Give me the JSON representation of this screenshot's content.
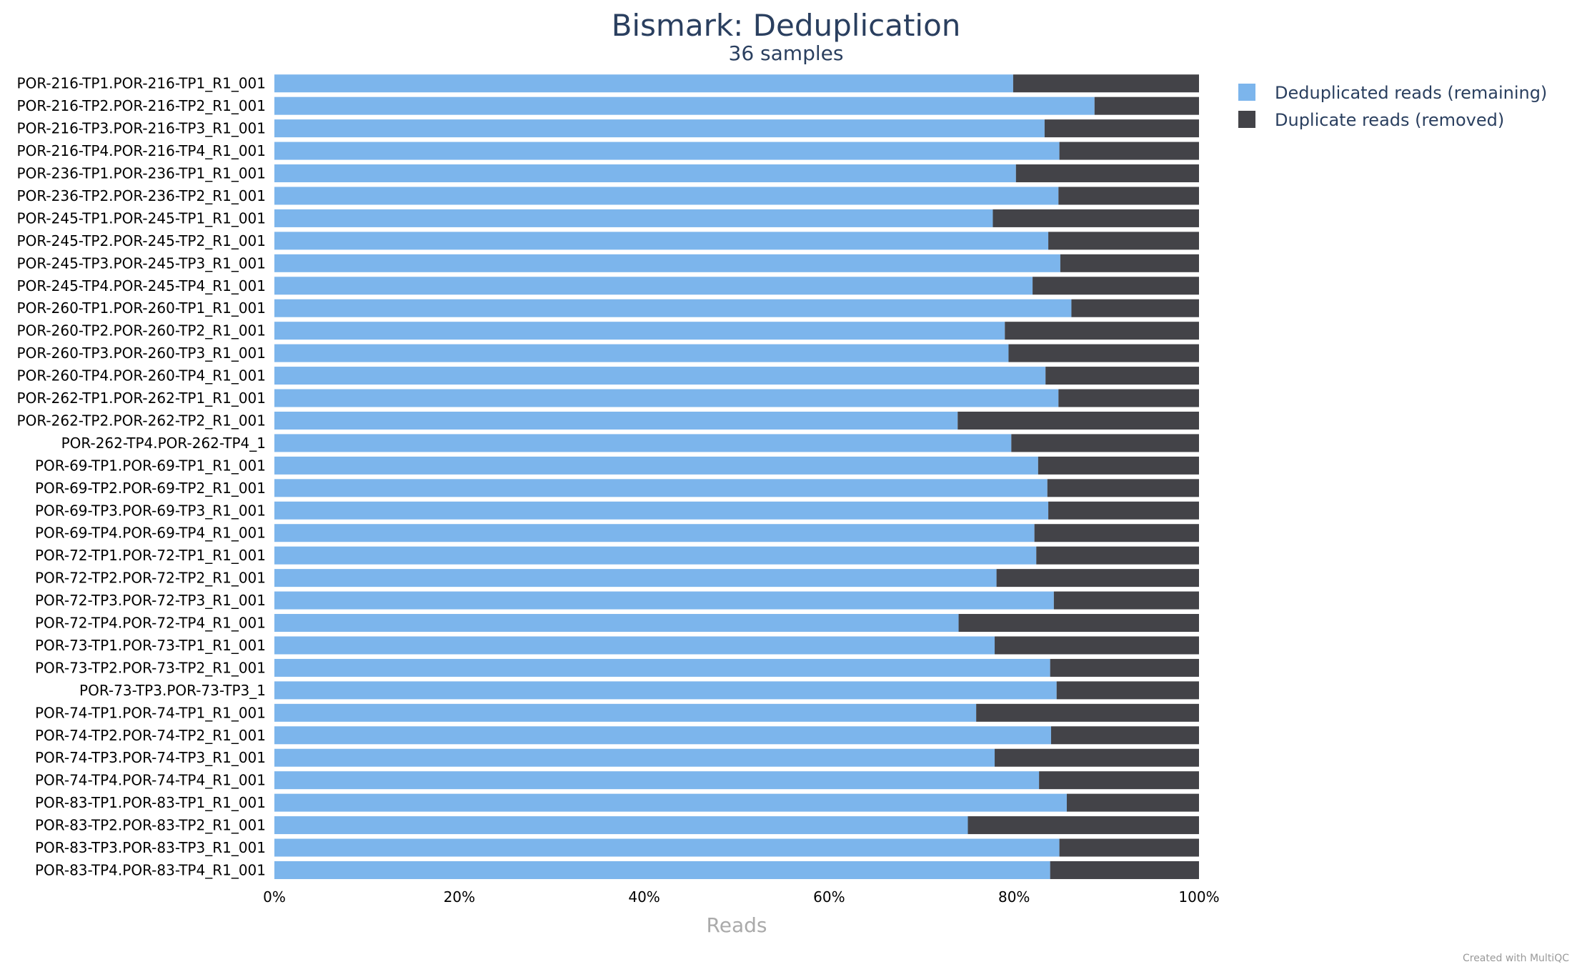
{
  "chart_data": {
    "type": "bar",
    "orientation": "horizontal",
    "stacked": true,
    "normalized_percent": true,
    "title": "Bismark: Deduplication",
    "subtitle": "36 samples",
    "xlabel": "Reads",
    "ylabel": "",
    "xlim": [
      0,
      100
    ],
    "x_ticks": [
      "0%",
      "20%",
      "40%",
      "60%",
      "80%",
      "100%"
    ],
    "grid": false,
    "legend_position": "top-right",
    "categories": [
      "POR-216-TP1.POR-216-TP1_R1_001",
      "POR-216-TP2.POR-216-TP2_R1_001",
      "POR-216-TP3.POR-216-TP3_R1_001",
      "POR-216-TP4.POR-216-TP4_R1_001",
      "POR-236-TP1.POR-236-TP1_R1_001",
      "POR-236-TP2.POR-236-TP2_R1_001",
      "POR-245-TP1.POR-245-TP1_R1_001",
      "POR-245-TP2.POR-245-TP2_R1_001",
      "POR-245-TP3.POR-245-TP3_R1_001",
      "POR-245-TP4.POR-245-TP4_R1_001",
      "POR-260-TP1.POR-260-TP1_R1_001",
      "POR-260-TP2.POR-260-TP2_R1_001",
      "POR-260-TP3.POR-260-TP3_R1_001",
      "POR-260-TP4.POR-260-TP4_R1_001",
      "POR-262-TP1.POR-262-TP1_R1_001",
      "POR-262-TP2.POR-262-TP2_R1_001",
      "POR-262-TP4.POR-262-TP4_1",
      "POR-69-TP1.POR-69-TP1_R1_001",
      "POR-69-TP2.POR-69-TP2_R1_001",
      "POR-69-TP3.POR-69-TP3_R1_001",
      "POR-69-TP4.POR-69-TP4_R1_001",
      "POR-72-TP1.POR-72-TP1_R1_001",
      "POR-72-TP2.POR-72-TP2_R1_001",
      "POR-72-TP3.POR-72-TP3_R1_001",
      "POR-72-TP4.POR-72-TP4_R1_001",
      "POR-73-TP1.POR-73-TP1_R1_001",
      "POR-73-TP2.POR-73-TP2_R1_001",
      "POR-73-TP3.POR-73-TP3_1",
      "POR-74-TP1.POR-74-TP1_R1_001",
      "POR-74-TP2.POR-74-TP2_R1_001",
      "POR-74-TP3.POR-74-TP3_R1_001",
      "POR-74-TP4.POR-74-TP4_R1_001",
      "POR-83-TP1.POR-83-TP1_R1_001",
      "POR-83-TP2.POR-83-TP2_R1_001",
      "POR-83-TP3.POR-83-TP3_R1_001",
      "POR-83-TP4.POR-83-TP4_R1_001"
    ],
    "series": [
      {
        "name": "Deduplicated reads (remaining)",
        "color": "#7cb5ec",
        "values": [
          79.9,
          88.7,
          83.3,
          84.9,
          80.2,
          84.8,
          77.7,
          83.7,
          85.0,
          82.0,
          86.2,
          79.0,
          79.4,
          83.4,
          84.8,
          73.9,
          79.7,
          82.6,
          83.6,
          83.7,
          82.2,
          82.4,
          78.1,
          84.3,
          74.0,
          77.9,
          83.9,
          84.6,
          75.9,
          84.0,
          77.9,
          82.7,
          85.7,
          75.0,
          84.9,
          83.9
        ]
      },
      {
        "name": "Duplicate reads (removed)",
        "color": "#434348",
        "values": [
          20.1,
          11.3,
          16.7,
          15.1,
          19.8,
          15.2,
          22.3,
          16.3,
          15.0,
          18.0,
          13.8,
          21.0,
          20.6,
          16.6,
          15.2,
          26.1,
          20.3,
          17.4,
          16.4,
          16.3,
          17.8,
          17.6,
          21.9,
          15.7,
          26.0,
          22.1,
          16.1,
          15.4,
          24.1,
          16.0,
          22.1,
          17.3,
          14.3,
          25.0,
          15.1,
          16.1
        ]
      }
    ]
  },
  "credit": "Created with MultiQC"
}
